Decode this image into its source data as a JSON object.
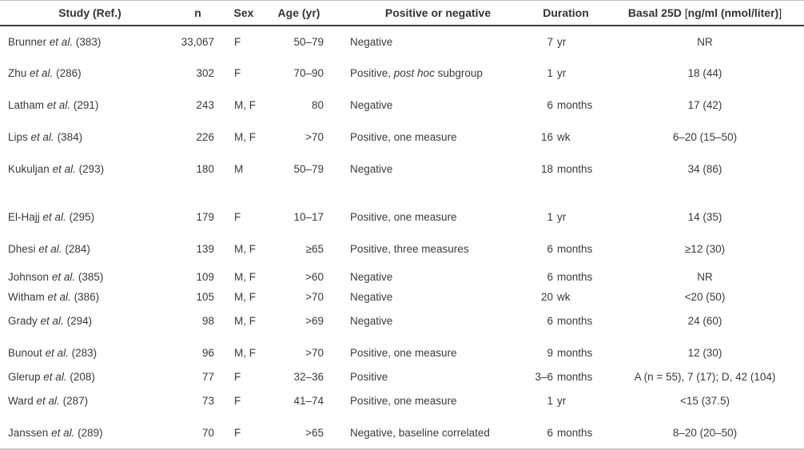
{
  "header": {
    "study": "Study (Ref.)",
    "n": "n",
    "sex": "Sex",
    "age": "Age (yr)",
    "pos": "Positive or negative",
    "duration": "Duration",
    "basal_prefix": "Basal 25D ",
    "basal_bracket_open": "[",
    "basal_inner": "ng/ml (nmol/liter)",
    "basal_bracket_close": "]"
  },
  "rows": [
    {
      "study": "Brunner",
      "etal": "et al.",
      "ref": "(383)",
      "n": "33,067",
      "sex": "F",
      "age": "50–79",
      "pos": {
        "pre": "Negative",
        "it": "",
        "post": ""
      },
      "dur": {
        "num": "7",
        "unit": "yr"
      },
      "basal": "NR",
      "row_class": ""
    },
    {
      "study": "Zhu",
      "etal": "et al.",
      "ref": "(286)",
      "n": "302",
      "sex": "F",
      "age": "70–90",
      "pos": {
        "pre": "Positive, ",
        "it": "post hoc",
        "post": " subgroup"
      },
      "dur": {
        "num": "1",
        "unit": "yr"
      },
      "basal": "18 (44)",
      "row_class": ""
    },
    {
      "study": "Latham",
      "etal": "et al.",
      "ref": "(291)",
      "n": "243",
      "sex": "M, F",
      "age": "80",
      "pos": {
        "pre": "Negative",
        "it": "",
        "post": ""
      },
      "dur": {
        "num": "6",
        "unit": "months"
      },
      "basal": "17 (42)",
      "row_class": ""
    },
    {
      "study": "Lips",
      "etal": "et al.",
      "ref": "(384)",
      "n": "226",
      "sex": "M, F",
      "age": ">70",
      "pos": {
        "pre": "Positive, one measure",
        "it": "",
        "post": ""
      },
      "dur": {
        "num": "16",
        "unit": "wk"
      },
      "basal": "6–20 (15–50)",
      "row_class": ""
    },
    {
      "study": "Kukuljan",
      "etal": "et al.",
      "ref": "(293)",
      "n": "180",
      "sex": "M",
      "age": "50–79",
      "pos": {
        "pre": "Negative",
        "it": "",
        "post": ""
      },
      "dur": {
        "num": "18",
        "unit": "months"
      },
      "basal": "34 (86)",
      "row_class": ""
    },
    {
      "study": "El-Hajj",
      "etal": "et al.",
      "ref": "(295)",
      "n": "179",
      "sex": "F",
      "age": "10–17",
      "pos": {
        "pre": "Positive, one measure",
        "it": "",
        "post": ""
      },
      "dur": {
        "num": "1",
        "unit": "yr"
      },
      "basal": "14 (35)",
      "row_class": "gap-before"
    },
    {
      "study": "Dhesi",
      "etal": "et al.",
      "ref": "(284)",
      "n": "139",
      "sex": "M, F",
      "age": "≥65",
      "pos": {
        "pre": "Positive, three measures",
        "it": "",
        "post": ""
      },
      "dur": {
        "num": "6",
        "unit": "months"
      },
      "basal": "≥12 (30)",
      "row_class": ""
    },
    {
      "study": "Johnson",
      "etal": "et al.",
      "ref": "(385)",
      "n": "109",
      "sex": "M, F",
      "age": ">60",
      "pos": {
        "pre": "Negative",
        "it": "",
        "post": ""
      },
      "dur": {
        "num": "6",
        "unit": "months"
      },
      "basal": "NR",
      "row_class": "pair-top"
    },
    {
      "study": "Witham",
      "etal": "et al.",
      "ref": "(386)",
      "n": "105",
      "sex": "M, F",
      "age": ">70",
      "pos": {
        "pre": "Negative",
        "it": "",
        "post": ""
      },
      "dur": {
        "num": "20",
        "unit": "wk"
      },
      "basal": "<20 (50)",
      "row_class": "pair-bottom"
    },
    {
      "study": "Grady",
      "etal": "et al.",
      "ref": "(294)",
      "n": "98",
      "sex": "M, F",
      "age": ">69",
      "pos": {
        "pre": "Negative",
        "it": "",
        "post": ""
      },
      "dur": {
        "num": "6",
        "unit": "months"
      },
      "basal": "24 (60)",
      "row_class": ""
    },
    {
      "study": "Bunout",
      "etal": "et al.",
      "ref": "(283)",
      "n": "96",
      "sex": "M, F",
      "age": ">70",
      "pos": {
        "pre": "Positive, one measure",
        "it": "",
        "post": ""
      },
      "dur": {
        "num": "9",
        "unit": "months"
      },
      "basal": "12 (30)",
      "row_class": ""
    },
    {
      "study": "Glerup",
      "etal": "et al.",
      "ref": "(208)",
      "n": "77",
      "sex": "F",
      "age": "32–36",
      "pos": {
        "pre": "Positive",
        "it": "",
        "post": ""
      },
      "dur": {
        "num": "3–6",
        "unit": "months"
      },
      "basal": "A (n = 55), 7 (17); D, 42 (104)",
      "row_class": "pair-bottom"
    },
    {
      "study": "Ward",
      "etal": "et al.",
      "ref": "(287)",
      "n": "73",
      "sex": "F",
      "age": "41–74",
      "pos": {
        "pre": "Positive, one measure",
        "it": "",
        "post": ""
      },
      "dur": {
        "num": "1",
        "unit": "yr"
      },
      "basal": "<15 (37.5)",
      "row_class": ""
    },
    {
      "study": "Janssen",
      "etal": "et al.",
      "ref": "(289)",
      "n": "70",
      "sex": "F",
      "age": ">65",
      "pos": {
        "pre": "Negative, baseline correlated",
        "it": "",
        "post": ""
      },
      "dur": {
        "num": "6",
        "unit": "months"
      },
      "basal": "8–20 (20–50)",
      "row_class": ""
    }
  ]
}
